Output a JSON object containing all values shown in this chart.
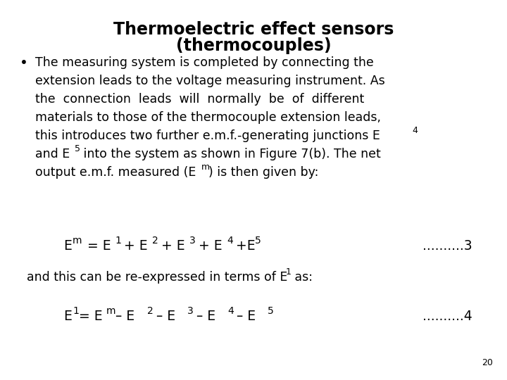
{
  "title_line1": "Thermoelectric effect sensors",
  "title_line2": "(thermocouples)",
  "body_lines": [
    "The measuring system is completed by connecting the",
    "extension leads to the voltage measuring instrument. As",
    "the  connection  leads  will  normally  be  of  different",
    "materials to those of the thermocouple extension leads,",
    "this introduces two further e.m.f.-generating junctions E₄",
    "and E₅ into the system as shown in Figure 7(b). The net",
    "output e.m.f. measured (Eₘ) is then given by:"
  ],
  "eq1_label": "..........3",
  "eq2_label": "..........4",
  "page_num": "20",
  "bg_color": "#ffffff",
  "text_color": "#000000",
  "title_fontsize": 17,
  "body_fontsize": 12.5,
  "eq_fontsize": 13.5,
  "sub_fontsize": 9
}
